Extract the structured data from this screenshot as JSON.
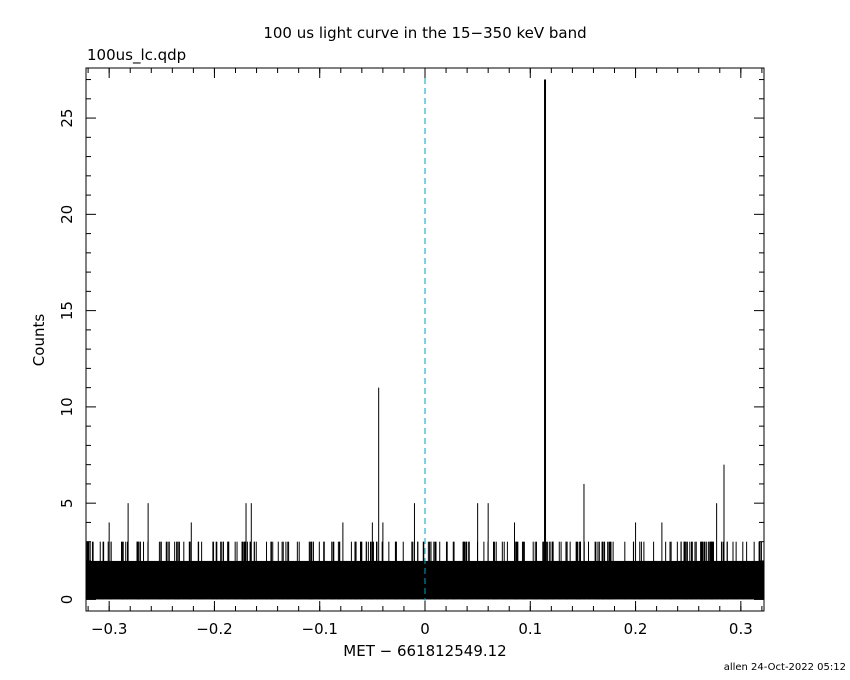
{
  "chart_data": {
    "type": "bar",
    "title": "100 us light curve in the 15−350 keV band",
    "file_label": "100us_lc.qdp",
    "xlabel": "MET − 661812549.12",
    "ylabel": "Counts",
    "xlim": [
      -0.322,
      0.322
    ],
    "ylim": [
      -0.6,
      27.6
    ],
    "x_ticks": [
      -0.3,
      -0.2,
      -0.1,
      0,
      0.1,
      0.2,
      0.3
    ],
    "x_tick_labels": [
      "−0.3",
      "−0.2",
      "−0.1",
      "0",
      "0.1",
      "0.2",
      "0.3"
    ],
    "y_ticks": [
      0,
      5,
      10,
      15,
      20,
      25
    ],
    "y_tick_labels": [
      "0",
      "5",
      "10",
      "15",
      "20",
      "25"
    ],
    "bin_width_s": 0.0001,
    "trigger_line": {
      "x": 0,
      "style": "dashed",
      "color": "#00a0c0"
    },
    "background_level": 2,
    "baseline_level": 1,
    "peaks": [
      {
        "x": -0.3,
        "value": 4
      },
      {
        "x": -0.282,
        "value": 5
      },
      {
        "x": -0.263,
        "value": 5
      },
      {
        "x": -0.245,
        "value": 3
      },
      {
        "x": -0.222,
        "value": 4
      },
      {
        "x": -0.17,
        "value": 5
      },
      {
        "x": -0.165,
        "value": 5
      },
      {
        "x": -0.078,
        "value": 4
      },
      {
        "x": -0.05,
        "value": 4
      },
      {
        "x": -0.044,
        "value": 11
      },
      {
        "x": -0.04,
        "value": 4
      },
      {
        "x": -0.01,
        "value": 5
      },
      {
        "x": 0.05,
        "value": 5
      },
      {
        "x": 0.06,
        "value": 5
      },
      {
        "x": 0.085,
        "value": 4
      },
      {
        "x": 0.114,
        "value": 27
      },
      {
        "x": 0.135,
        "value": 3
      },
      {
        "x": 0.151,
        "value": 6
      },
      {
        "x": 0.2,
        "value": 4
      },
      {
        "x": 0.225,
        "value": 4
      },
      {
        "x": 0.277,
        "value": 5
      },
      {
        "x": 0.284,
        "value": 7
      }
    ],
    "grid": false,
    "legend": "none"
  },
  "footer": {
    "stamp": "allen 24-Oct-2022 05:12"
  }
}
